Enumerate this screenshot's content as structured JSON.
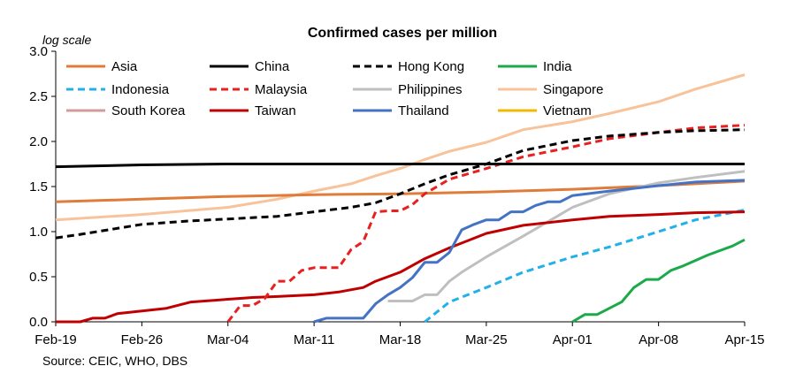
{
  "chart_data": {
    "type": "line",
    "title": "Confirmed cases per million",
    "scale_note": "log scale",
    "source": "Source: CEIC, WHO, DBS",
    "ylim": [
      0,
      3.0
    ],
    "y_ticks": [
      "0.0",
      "0.5",
      "1.0",
      "1.5",
      "2.0",
      "2.5",
      "3.0"
    ],
    "y_tick_values": [
      0,
      0.5,
      1.0,
      1.5,
      2.0,
      2.5,
      3.0
    ],
    "x_range": [
      "2020-02-19",
      "2020-04-15"
    ],
    "x_ticks": [
      "Feb-19",
      "Feb-26",
      "Mar-04",
      "Mar-11",
      "Mar-18",
      "Mar-25",
      "Apr-01",
      "Apr-08",
      "Apr-15"
    ],
    "grid": false,
    "legend_position": "top",
    "series": [
      {
        "name": "Asia",
        "color": "#E07B39",
        "style": "solid",
        "x": [
          "2020-02-19",
          "2020-02-26",
          "2020-03-04",
          "2020-03-11",
          "2020-03-18",
          "2020-03-25",
          "2020-04-01",
          "2020-04-08",
          "2020-04-15"
        ],
        "y": [
          1.33,
          1.36,
          1.39,
          1.41,
          1.42,
          1.44,
          1.47,
          1.51,
          1.56
        ]
      },
      {
        "name": "China",
        "color": "#000000",
        "style": "solid",
        "x": [
          "2020-02-19",
          "2020-02-26",
          "2020-03-04",
          "2020-03-11",
          "2020-03-18",
          "2020-03-25",
          "2020-04-01",
          "2020-04-08",
          "2020-04-15"
        ],
        "y": [
          1.72,
          1.74,
          1.75,
          1.75,
          1.75,
          1.75,
          1.75,
          1.75,
          1.75
        ]
      },
      {
        "name": "Hong Kong",
        "color": "#000000",
        "style": "dashed",
        "x": [
          "2020-02-19",
          "2020-02-21",
          "2020-02-26",
          "2020-03-01",
          "2020-03-04",
          "2020-03-08",
          "2020-03-11",
          "2020-03-14",
          "2020-03-16",
          "2020-03-18",
          "2020-03-20",
          "2020-03-22",
          "2020-03-25",
          "2020-03-28",
          "2020-04-01",
          "2020-04-04",
          "2020-04-08",
          "2020-04-11",
          "2020-04-15"
        ],
        "y": [
          0.93,
          0.97,
          1.08,
          1.12,
          1.14,
          1.17,
          1.22,
          1.27,
          1.32,
          1.42,
          1.53,
          1.63,
          1.75,
          1.9,
          2.01,
          2.06,
          2.1,
          2.12,
          2.13
        ]
      },
      {
        "name": "India",
        "color": "#1AAA4A",
        "style": "solid",
        "x": [
          "2020-04-01",
          "2020-04-02",
          "2020-04-03",
          "2020-04-04",
          "2020-04-05",
          "2020-04-06",
          "2020-04-07",
          "2020-04-08",
          "2020-04-09",
          "2020-04-10",
          "2020-04-11",
          "2020-04-12",
          "2020-04-13",
          "2020-04-14",
          "2020-04-15"
        ],
        "y": [
          0.0,
          0.08,
          0.08,
          0.15,
          0.22,
          0.38,
          0.47,
          0.47,
          0.57,
          0.62,
          0.68,
          0.74,
          0.79,
          0.84,
          0.91
        ]
      },
      {
        "name": "Indonesia",
        "color": "#21B1E8",
        "style": "dashed",
        "x": [
          "2020-03-20",
          "2020-03-22",
          "2020-03-25",
          "2020-03-28",
          "2020-04-01",
          "2020-04-04",
          "2020-04-08",
          "2020-04-11",
          "2020-04-15"
        ],
        "y": [
          0.0,
          0.22,
          0.38,
          0.55,
          0.72,
          0.83,
          1.0,
          1.13,
          1.24
        ]
      },
      {
        "name": "Malaysia",
        "color": "#E8211E",
        "style": "dashed",
        "x": [
          "2020-03-04",
          "2020-03-05",
          "2020-03-06",
          "2020-03-07",
          "2020-03-08",
          "2020-03-09",
          "2020-03-10",
          "2020-03-11",
          "2020-03-12",
          "2020-03-13",
          "2020-03-14",
          "2020-03-15",
          "2020-03-16",
          "2020-03-17",
          "2020-03-18",
          "2020-03-19",
          "2020-03-20",
          "2020-03-22",
          "2020-03-25",
          "2020-03-28",
          "2020-04-01",
          "2020-04-04",
          "2020-04-08",
          "2020-04-11",
          "2020-04-15"
        ],
        "y": [
          0.0,
          0.18,
          0.18,
          0.26,
          0.45,
          0.45,
          0.57,
          0.6,
          0.6,
          0.6,
          0.8,
          0.89,
          1.22,
          1.23,
          1.23,
          1.3,
          1.42,
          1.58,
          1.7,
          1.83,
          1.94,
          2.03,
          2.1,
          2.15,
          2.18
        ]
      },
      {
        "name": "Philippines",
        "color": "#BFBFBF",
        "style": "solid",
        "x": [
          "2020-03-17",
          "2020-03-18",
          "2020-03-19",
          "2020-03-20",
          "2020-03-21",
          "2020-03-22",
          "2020-03-23",
          "2020-03-25",
          "2020-03-28",
          "2020-04-01",
          "2020-04-04",
          "2020-04-08",
          "2020-04-11",
          "2020-04-15"
        ],
        "y": [
          0.23,
          0.23,
          0.23,
          0.3,
          0.3,
          0.45,
          0.55,
          0.72,
          0.95,
          1.27,
          1.42,
          1.54,
          1.6,
          1.67
        ]
      },
      {
        "name": "Singapore",
        "color": "#F8C39A",
        "style": "solid",
        "x": [
          "2020-02-19",
          "2020-02-26",
          "2020-03-04",
          "2020-03-08",
          "2020-03-11",
          "2020-03-14",
          "2020-03-16",
          "2020-03-18",
          "2020-03-20",
          "2020-03-22",
          "2020-03-25",
          "2020-03-28",
          "2020-04-01",
          "2020-04-04",
          "2020-04-08",
          "2020-04-11",
          "2020-04-15"
        ],
        "y": [
          1.13,
          1.19,
          1.27,
          1.36,
          1.45,
          1.53,
          1.62,
          1.7,
          1.8,
          1.89,
          1.99,
          2.13,
          2.22,
          2.31,
          2.44,
          2.58,
          2.74
        ]
      },
      {
        "name": "South Korea",
        "color": "#D49A9A",
        "style": "solid",
        "x": [],
        "y": []
      },
      {
        "name": "Taiwan",
        "color": "#C00000",
        "style": "solid",
        "x": [
          "2020-02-19",
          "2020-02-20",
          "2020-02-21",
          "2020-02-22",
          "2020-02-23",
          "2020-02-24",
          "2020-02-26",
          "2020-02-28",
          "2020-03-01",
          "2020-03-04",
          "2020-03-06",
          "2020-03-08",
          "2020-03-11",
          "2020-03-13",
          "2020-03-15",
          "2020-03-16",
          "2020-03-18",
          "2020-03-20",
          "2020-03-22",
          "2020-03-25",
          "2020-03-28",
          "2020-04-01",
          "2020-04-04",
          "2020-04-08",
          "2020-04-11",
          "2020-04-15"
        ],
        "y": [
          0.0,
          0.0,
          0.0,
          0.04,
          0.04,
          0.09,
          0.12,
          0.15,
          0.22,
          0.25,
          0.27,
          0.28,
          0.3,
          0.33,
          0.38,
          0.45,
          0.55,
          0.7,
          0.82,
          0.98,
          1.07,
          1.13,
          1.17,
          1.19,
          1.21,
          1.22
        ]
      },
      {
        "name": "Thailand",
        "color": "#4472C4",
        "style": "solid",
        "x": [
          "2020-03-11",
          "2020-03-12",
          "2020-03-15",
          "2020-03-16",
          "2020-03-17",
          "2020-03-18",
          "2020-03-19",
          "2020-03-20",
          "2020-03-21",
          "2020-03-22",
          "2020-03-23",
          "2020-03-24",
          "2020-03-25",
          "2020-03-26",
          "2020-03-27",
          "2020-03-28",
          "2020-03-29",
          "2020-03-30",
          "2020-03-31",
          "2020-04-01",
          "2020-04-04",
          "2020-04-08",
          "2020-04-11",
          "2020-04-15"
        ],
        "y": [
          0.0,
          0.04,
          0.04,
          0.2,
          0.3,
          0.38,
          0.49,
          0.66,
          0.66,
          0.77,
          1.02,
          1.08,
          1.13,
          1.13,
          1.22,
          1.22,
          1.29,
          1.33,
          1.33,
          1.4,
          1.45,
          1.51,
          1.55,
          1.57
        ]
      },
      {
        "name": "Vietnam",
        "color": "#F5B800",
        "style": "solid",
        "x": [],
        "y": []
      }
    ]
  }
}
